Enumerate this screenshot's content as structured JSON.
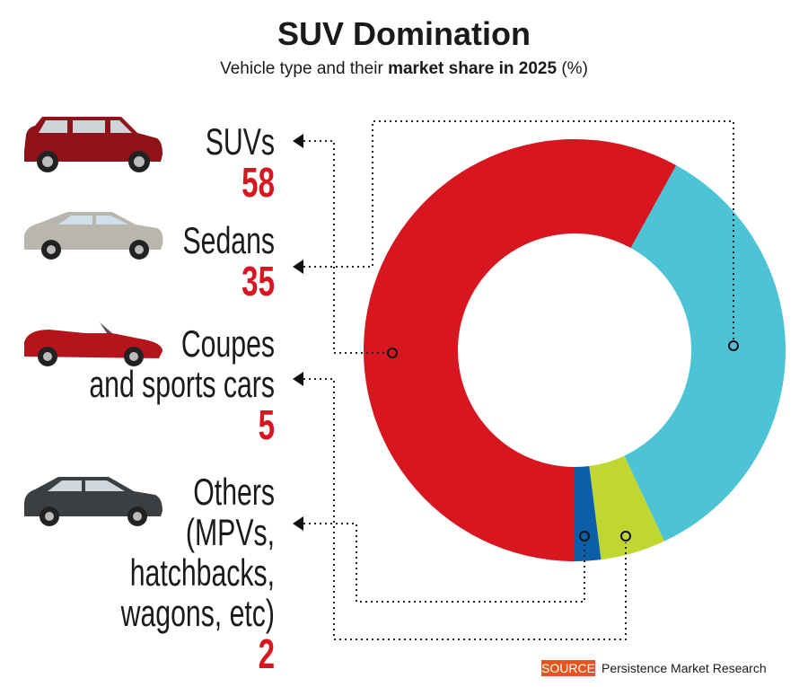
{
  "chart_data": {
    "type": "pie",
    "title": "SUV Domination",
    "subtitle_prefix": "Vehicle type and their ",
    "subtitle_bold": "market share in 2025",
    "subtitle_suffix": " (%)",
    "unit": "%",
    "series": [
      {
        "name": "SUVs",
        "label_lines": [
          "SUVs"
        ],
        "value": 58,
        "color": "#d7161f"
      },
      {
        "name": "Sedans",
        "label_lines": [
          "Sedans"
        ],
        "value": 35,
        "color": "#4dc3d6"
      },
      {
        "name": "Coupes and sports cars",
        "label_lines": [
          "Coupes",
          "and sports cars"
        ],
        "value": 5,
        "color": "#bfd730"
      },
      {
        "name": "Others (MPVs, hatchbacks, wagons, etc)",
        "label_lines": [
          "Others",
          "(MPVs,",
          "hatchbacks,",
          "wagons, etc)"
        ],
        "value": 2,
        "color": "#0a5fa8"
      }
    ],
    "donut": true,
    "start": "bottom",
    "direction": "clockwise"
  },
  "source": {
    "tag": "SOURCE",
    "text": "Persistence Market Research",
    "tag_color": "#e8531d"
  }
}
